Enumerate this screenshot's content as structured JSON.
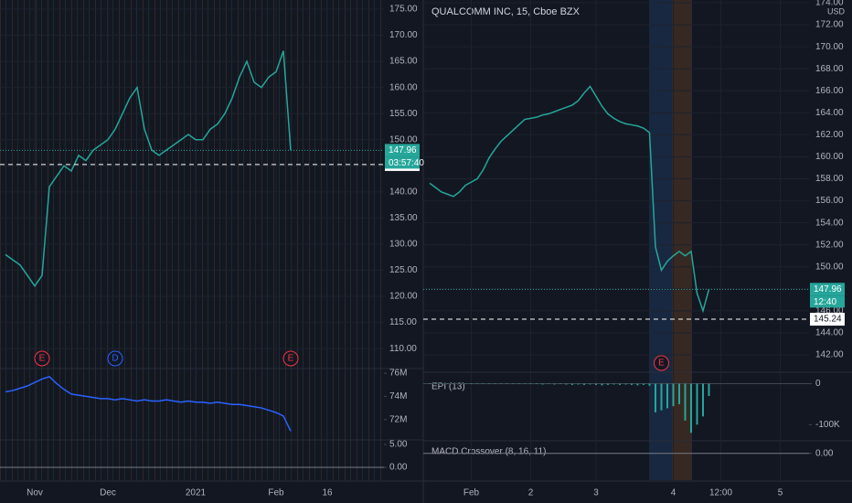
{
  "chart_data": [
    {
      "type": "line",
      "categories": [
        null,
        null,
        null,
        null,
        "Nov",
        null,
        null,
        null,
        null,
        null,
        null,
        null,
        null,
        null,
        "Dec",
        null,
        null,
        null,
        null,
        null,
        null,
        null,
        null,
        null,
        null,
        null,
        "2021",
        null,
        null,
        null,
        null,
        null,
        null,
        null,
        null,
        null,
        null,
        "Feb",
        null,
        null,
        null,
        null,
        null,
        null,
        "16",
        null
      ],
      "values": [
        128,
        127,
        126,
        124,
        122,
        124,
        141,
        143,
        145,
        144,
        147,
        146,
        148,
        149,
        150,
        152,
        155,
        158,
        160,
        152,
        148,
        147,
        148,
        149,
        150,
        151,
        150,
        150,
        152,
        153,
        155,
        158,
        162,
        165,
        161,
        160,
        162,
        163,
        167,
        147.96,
        null,
        null,
        null,
        null,
        null,
        null
      ],
      "color": "#26a69a",
      "ylim": [
        106.7,
        176.75
      ],
      "yticks": [
        {
          "value": 175,
          "label": "175.00"
        },
        {
          "value": 170,
          "label": "170.00"
        },
        {
          "value": 165,
          "label": "165.00"
        },
        {
          "value": 160,
          "label": "160.00"
        },
        {
          "value": 155,
          "label": "155.00"
        },
        {
          "value": 150,
          "label": "150.00"
        },
        {
          "value": 145,
          "label": "145.00"
        },
        {
          "value": 140,
          "label": "140.00"
        },
        {
          "value": 135,
          "label": "135.00"
        },
        {
          "value": 130,
          "label": "130.00"
        },
        {
          "value": 125,
          "label": "125.00"
        },
        {
          "value": 120,
          "label": "120.00"
        },
        {
          "value": 115,
          "label": "115.00"
        },
        {
          "value": 110,
          "label": "110.00"
        }
      ],
      "grid": true,
      "last_price": {
        "value": 147.96,
        "label": "147.96"
      },
      "countdown": "03:57:40",
      "reference_price": {
        "value": 145.24,
        "label": "145.24"
      },
      "events": [
        {
          "label": "E",
          "x": 5,
          "color": "#f23645"
        },
        {
          "label": "D",
          "x": 15,
          "color": "#2962ff"
        },
        {
          "label": "E",
          "x": 39,
          "color": "#f23645"
        }
      ],
      "volume_panel": {
        "values": [
          74400000,
          74500000,
          74700000,
          74900000,
          75200000,
          75500000,
          75700000,
          75100000,
          74600000,
          74200000,
          74100000,
          74000000,
          73900000,
          73800000,
          73800000,
          73700000,
          73800000,
          73700000,
          73600000,
          73700000,
          73600000,
          73600000,
          73700000,
          73600000,
          73500000,
          73600000,
          73500000,
          73500000,
          73400000,
          73500000,
          73400000,
          73300000,
          73300000,
          73200000,
          73100000,
          73000000,
          72800000,
          72600000,
          72300000,
          71000000,
          null,
          null,
          null,
          null,
          null,
          null
        ],
        "color": "#2962ff",
        "ylim": [
          70240000,
          76400000
        ],
        "yticks": [
          {
            "value": 76000000,
            "label": "76M"
          },
          {
            "value": 74000000,
            "label": "74M"
          },
          {
            "value": 72000000,
            "label": "72M"
          }
        ]
      },
      "macd_panel": {
        "ylim": [
          -2.2,
          5.8
        ],
        "yticks": [
          {
            "value": 5,
            "label": "5.00"
          },
          {
            "value": 0,
            "label": "0.00"
          }
        ]
      }
    },
    {
      "type": "line",
      "title": "QUALCOMM INC, 15, Cboe BZX",
      "unit": "USD",
      "categories": [
        null,
        null,
        null,
        null,
        null,
        null,
        null,
        "Feb",
        null,
        null,
        null,
        null,
        null,
        null,
        null,
        null,
        null,
        "2",
        null,
        null,
        null,
        null,
        null,
        null,
        null,
        null,
        null,
        null,
        "3",
        null,
        null,
        null,
        null,
        null,
        null,
        null,
        null,
        null,
        null,
        null,
        null,
        "4",
        null,
        null,
        null,
        null,
        null,
        null,
        null,
        "12:00",
        null,
        null,
        null,
        null,
        null,
        null,
        null,
        null,
        null,
        "5"
      ],
      "values": [
        157.6,
        157.2,
        156.8,
        156.6,
        156.4,
        156.8,
        157.4,
        157.7,
        158.0,
        158.8,
        159.9,
        160.7,
        161.4,
        161.9,
        162.4,
        162.9,
        163.4,
        163.5,
        163.6,
        163.8,
        163.9,
        164.1,
        164.3,
        164.5,
        164.7,
        165.1,
        165.8,
        166.4,
        165.5,
        164.6,
        163.9,
        163.5,
        163.2,
        163.0,
        162.9,
        162.8,
        162.6,
        162.2,
        151.8,
        149.7,
        150.5,
        151.0,
        151.4,
        151.0,
        151.4,
        147.6,
        146.0,
        147.96,
        null,
        null,
        null,
        null,
        null,
        null,
        null,
        null,
        null,
        null,
        null,
        null
      ],
      "color": "#26a69a",
      "ylim": [
        140.59,
        174.25
      ],
      "yticks": [
        {
          "value": 174,
          "label": "174.00"
        },
        {
          "value": 172,
          "label": "172.00"
        },
        {
          "value": 170,
          "label": "170.00"
        },
        {
          "value": 168,
          "label": "168.00"
        },
        {
          "value": 166,
          "label": "166.00"
        },
        {
          "value": 164,
          "label": "164.00"
        },
        {
          "value": 162,
          "label": "162.00"
        },
        {
          "value": 160,
          "label": "160.00"
        },
        {
          "value": 158,
          "label": "158.00"
        },
        {
          "value": 156,
          "label": "156.00"
        },
        {
          "value": 154,
          "label": "154.00"
        },
        {
          "value": 152,
          "label": "152.00"
        },
        {
          "value": 150,
          "label": "150.00"
        },
        {
          "value": 148,
          "label": "148.00"
        },
        {
          "value": 146,
          "label": "146.00"
        },
        {
          "value": 144,
          "label": "144.00"
        },
        {
          "value": 142,
          "label": "142.00"
        }
      ],
      "grid": true,
      "last_price": {
        "value": 147.96,
        "label": "147.96"
      },
      "countdown": "12:40",
      "reference_price": {
        "value": 145.24,
        "label": "145.24"
      },
      "events": [
        {
          "label": "E",
          "x": 39,
          "color": "#f23645"
        }
      ],
      "epi_panel": {
        "label": "EPI (13)",
        "values": [
          0,
          0,
          -1000,
          0,
          -1000,
          0,
          0,
          -1000,
          0,
          0,
          -1000,
          0,
          0,
          -1000,
          0,
          -1000,
          0,
          0,
          -1000,
          -2000,
          -1000,
          -2000,
          -1000,
          -2000,
          -3000,
          -2000,
          -3000,
          -2000,
          -3000,
          -4000,
          -3000,
          -2000,
          -3000,
          -2000,
          -3000,
          -4000,
          -3000,
          -5000,
          -70000,
          -65000,
          -60000,
          -55000,
          -50000,
          -90000,
          -120000,
          -100000,
          -80000,
          -30000,
          null,
          null,
          null,
          null,
          null,
          null,
          null,
          null,
          null,
          null,
          null,
          null
        ],
        "color": "#26a69a",
        "ylim": [
          -135000,
          28000
        ],
        "yticks": [
          0,
          {
            "value": -100000,
            "label": "-100K"
          }
        ]
      },
      "macd_panel": {
        "label": "MACD Crossover (8, 16, 11)",
        "ylim": [
          -3,
          1
        ],
        "yticks": [
          {
            "value": 0,
            "label": "0.00"
          }
        ]
      }
    }
  ]
}
